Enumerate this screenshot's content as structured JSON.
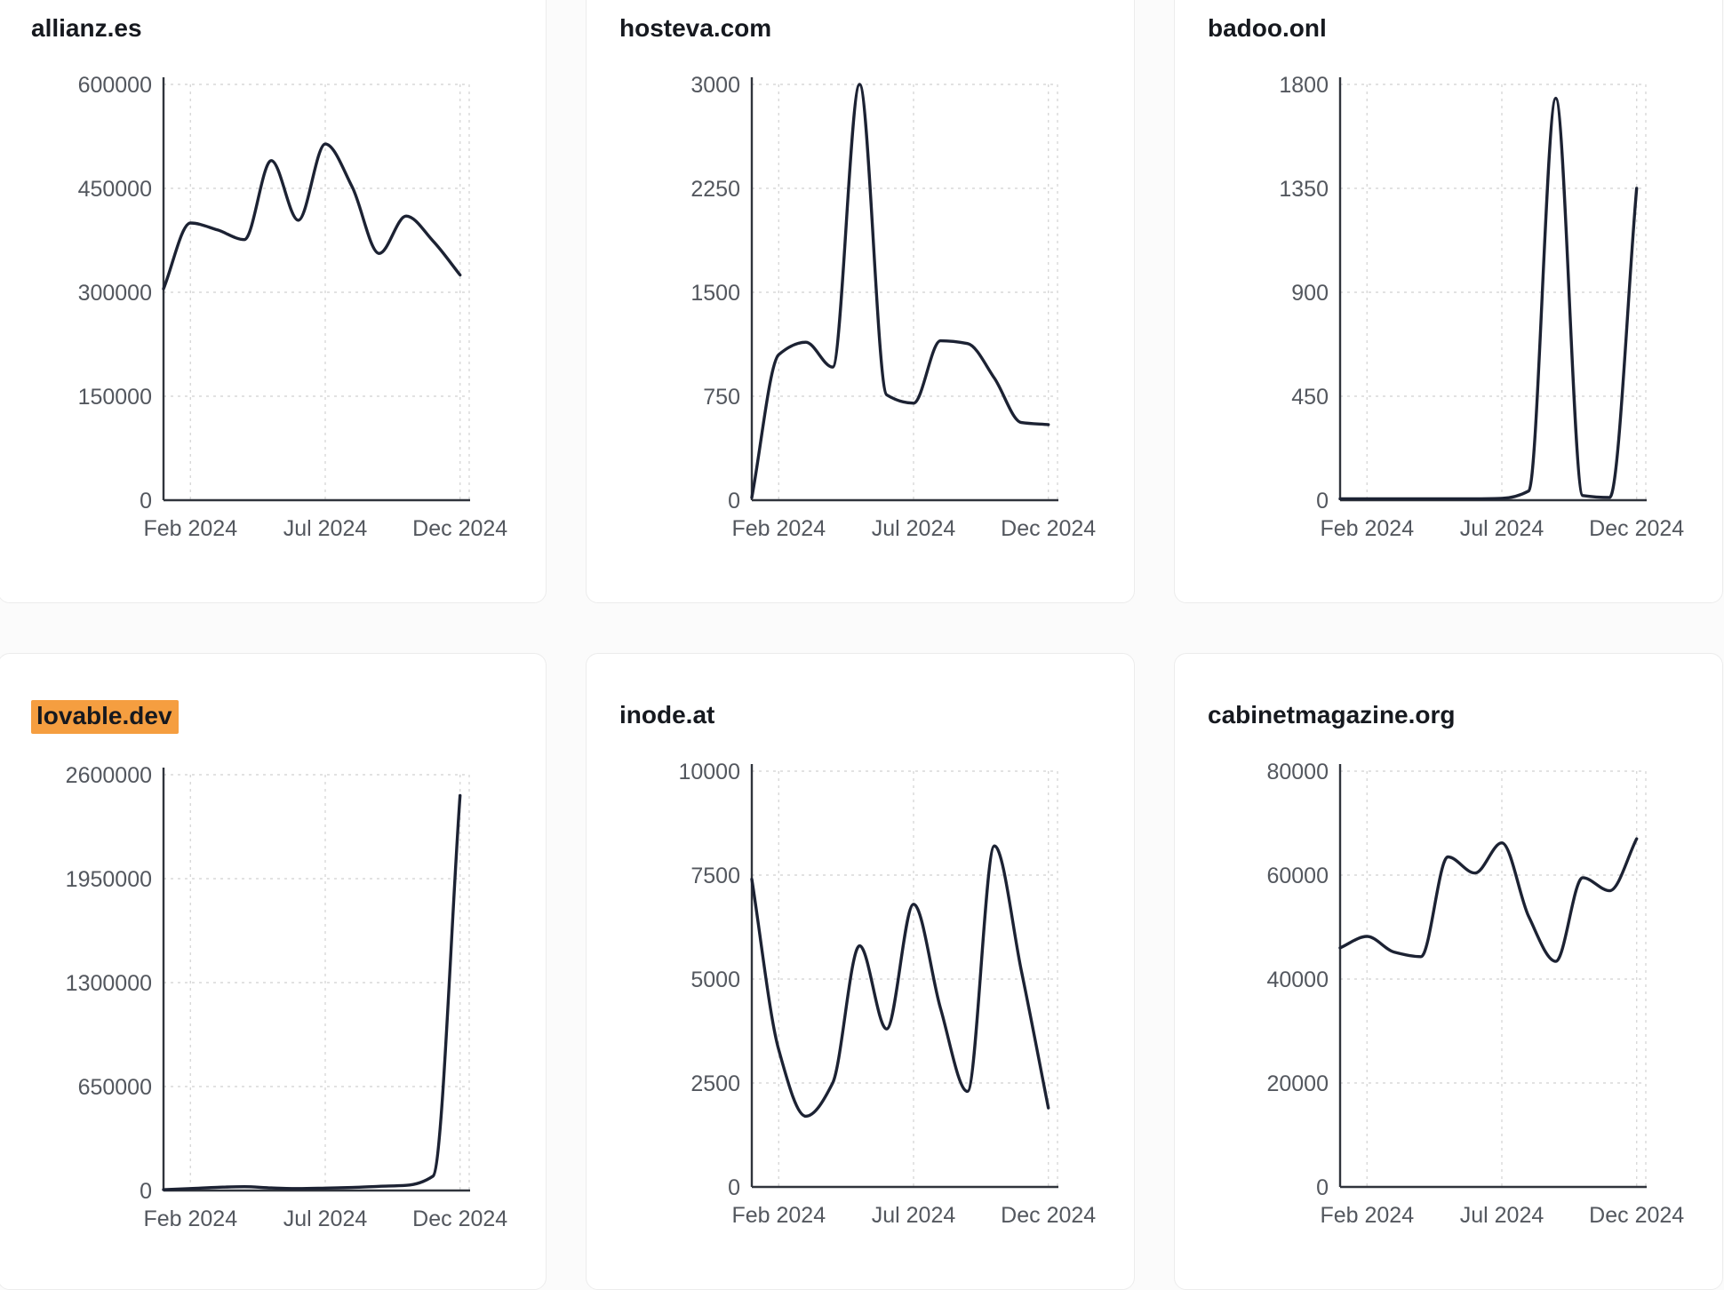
{
  "page": {
    "background": "#fbfbfb"
  },
  "palette": {
    "card_bg": "#ffffff",
    "card_border": "#ececec",
    "title_text": "#16191f",
    "tick_text": "#53575e",
    "axis": "#30343c",
    "grid": "#d8d8d8",
    "line": "#1c2233",
    "highlight_bg": "#f59e40"
  },
  "x_ticks": [
    {
      "label": "Feb 2024",
      "index": 1
    },
    {
      "label": "Jul 2024",
      "index": 6
    },
    {
      "label": "Dec 2024",
      "index": 11
    }
  ],
  "chart_data": [
    {
      "type": "line",
      "title": "allianz.es",
      "title_highlight": false,
      "x": [
        "Jan 2024",
        "Feb 2024",
        "Mar 2024",
        "Apr 2024",
        "May 2024",
        "Jun 2024",
        "Jul 2024",
        "Aug 2024",
        "Sep 2024",
        "Oct 2024",
        "Nov 2024",
        "Dec 2024"
      ],
      "values": [
        305000,
        400000,
        390000,
        376000,
        490000,
        404000,
        514000,
        452000,
        356000,
        410000,
        374000,
        325000
      ],
      "y_ticks": [
        0,
        150000,
        300000,
        450000,
        600000
      ],
      "ylim": [
        0,
        600000
      ],
      "grid": "dashed",
      "legend": "none"
    },
    {
      "type": "line",
      "title": "hosteva.com",
      "title_highlight": false,
      "x": [
        "Jan 2024",
        "Feb 2024",
        "Mar 2024",
        "Apr 2024",
        "May 2024",
        "Jun 2024",
        "Jul 2024",
        "Aug 2024",
        "Sep 2024",
        "Oct 2024",
        "Nov 2024",
        "Dec 2024"
      ],
      "values": [
        20,
        1050,
        1140,
        960,
        3000,
        760,
        700,
        1150,
        1130,
        880,
        560,
        545
      ],
      "y_ticks": [
        0,
        750,
        1500,
        2250,
        3000
      ],
      "ylim": [
        0,
        3000
      ],
      "grid": "dashed",
      "legend": "none"
    },
    {
      "type": "line",
      "title": "badoo.onl",
      "title_highlight": false,
      "x": [
        "Jan 2024",
        "Feb 2024",
        "Mar 2024",
        "Apr 2024",
        "May 2024",
        "Jun 2024",
        "Jul 2024",
        "Aug 2024",
        "Sep 2024",
        "Oct 2024",
        "Nov 2024",
        "Dec 2024"
      ],
      "values": [
        6,
        6,
        6,
        6,
        6,
        6,
        8,
        40,
        1740,
        20,
        12,
        1350
      ],
      "y_ticks": [
        0,
        450,
        900,
        1350,
        1800
      ],
      "ylim": [
        0,
        1800
      ],
      "grid": "dashed",
      "legend": "none"
    },
    {
      "type": "line",
      "title": "lovable.dev",
      "title_highlight": true,
      "x": [
        "Jan 2024",
        "Feb 2024",
        "Mar 2024",
        "Apr 2024",
        "May 2024",
        "Jun 2024",
        "Jul 2024",
        "Aug 2024",
        "Sep 2024",
        "Oct 2024",
        "Nov 2024",
        "Dec 2024"
      ],
      "values": [
        5000,
        12000,
        20000,
        24000,
        16000,
        12000,
        15000,
        19000,
        26000,
        32000,
        90000,
        2470000
      ],
      "y_ticks": [
        0,
        650000,
        1300000,
        1950000,
        2600000
      ],
      "ylim": [
        0,
        2600000
      ],
      "grid": "dashed",
      "legend": "none"
    },
    {
      "type": "line",
      "title": "inode.at",
      "title_highlight": false,
      "x": [
        "Jan 2024",
        "Feb 2024",
        "Mar 2024",
        "Apr 2024",
        "May 2024",
        "Jun 2024",
        "Jul 2024",
        "Aug 2024",
        "Sep 2024",
        "Oct 2024",
        "Nov 2024",
        "Dec 2024"
      ],
      "values": [
        7400,
        3300,
        1700,
        2500,
        5800,
        3800,
        6800,
        4300,
        2300,
        8200,
        5200,
        1900
      ],
      "y_ticks": [
        0,
        2500,
        5000,
        7500,
        10000
      ],
      "ylim": [
        0,
        10000
      ],
      "grid": "dashed",
      "legend": "none"
    },
    {
      "type": "line",
      "title": "cabinetmagazine.org",
      "title_highlight": false,
      "x": [
        "Jan 2024",
        "Feb 2024",
        "Mar 2024",
        "Apr 2024",
        "May 2024",
        "Jun 2024",
        "Jul 2024",
        "Aug 2024",
        "Sep 2024",
        "Oct 2024",
        "Nov 2024",
        "Dec 2024"
      ],
      "values": [
        46000,
        48200,
        45200,
        44300,
        63500,
        60400,
        66200,
        52000,
        43400,
        59500,
        57000,
        67000
      ],
      "y_ticks": [
        0,
        20000,
        40000,
        60000,
        80000
      ],
      "ylim": [
        0,
        80000
      ],
      "grid": "dashed",
      "legend": "none"
    }
  ]
}
